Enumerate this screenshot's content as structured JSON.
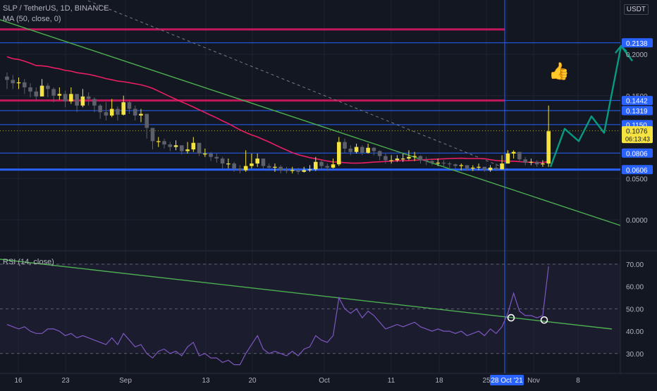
{
  "header": {
    "symbol_line": "SLP / TetherUS, 1D, BINANCE",
    "ma_line": "MA (50, close, 0)",
    "currency": "USDT"
  },
  "rsi_legend": "RSI (14, close)",
  "annotation_icon": "thumbs-up-icon",
  "colors": {
    "background": "#131722",
    "candle_up": "#f5e342",
    "candle_down": "#5d606b",
    "ma": "#e91e63",
    "trendline": "#4caf50",
    "resistance": "#c2185b",
    "hline": "#2962ff",
    "rsi": "#7e57c2",
    "projection": "#089981"
  },
  "chart_data": [
    {
      "type": "candlestick",
      "title": "SLP / TetherUS, 1D, BINANCE",
      "indicator": "MA (50, close, 0)",
      "x_tick_labels": [
        "16",
        "23",
        "Sep",
        "13",
        "20",
        "Oct",
        "11",
        "18",
        "25",
        "28 Oct '21",
        "Nov",
        "8"
      ],
      "y_tick_labels": [
        "0.2000",
        "0.1500",
        "0.0500",
        "0.0000"
      ],
      "price_labels": [
        {
          "value": 0.2138,
          "label": "0.2138",
          "kind": "horizontal-line"
        },
        {
          "value": 0.1442,
          "label": "0.1442",
          "kind": "horizontal-line"
        },
        {
          "value": 0.1319,
          "label": "0.1319",
          "kind": "horizontal-line"
        },
        {
          "value": 0.115,
          "label": "0.1150",
          "kind": "horizontal-line"
        },
        {
          "value": 0.1076,
          "label": "0.1076",
          "sublabel": "06:13:43",
          "kind": "last-price"
        },
        {
          "value": 0.0806,
          "label": "0.0806",
          "kind": "horizontal-line"
        },
        {
          "value": 0.0606,
          "label": "0.0606",
          "kind": "horizontal-line"
        }
      ],
      "resistance_levels": [
        0.23,
        0.1442
      ],
      "closes": [
        0.169,
        0.165,
        0.166,
        0.16,
        0.155,
        0.149,
        0.162,
        0.158,
        0.15,
        0.152,
        0.143,
        0.152,
        0.138,
        0.149,
        0.146,
        0.138,
        0.13,
        0.126,
        0.134,
        0.127,
        0.142,
        0.134,
        0.126,
        0.128,
        0.111,
        0.095,
        0.095,
        0.091,
        0.088,
        0.09,
        0.083,
        0.085,
        0.093,
        0.08,
        0.08,
        0.076,
        0.074,
        0.068,
        0.068,
        0.062,
        0.06,
        0.065,
        0.068,
        0.074,
        0.065,
        0.063,
        0.064,
        0.06,
        0.059,
        0.06,
        0.058,
        0.06,
        0.061,
        0.07,
        0.065,
        0.063,
        0.067,
        0.094,
        0.086,
        0.082,
        0.088,
        0.081,
        0.087,
        0.083,
        0.077,
        0.072,
        0.072,
        0.074,
        0.074,
        0.076,
        0.077,
        0.072,
        0.071,
        0.069,
        0.069,
        0.068,
        0.067,
        0.065,
        0.066,
        0.062,
        0.063,
        0.064,
        0.06,
        0.063,
        0.061,
        0.068,
        0.08,
        0.082,
        0.073,
        0.069,
        0.07,
        0.067,
        0.068,
        0.107
      ],
      "highs": [
        0.178,
        0.175,
        0.172,
        0.17,
        0.165,
        0.16,
        0.17,
        0.165,
        0.16,
        0.16,
        0.156,
        0.16,
        0.15,
        0.158,
        0.154,
        0.148,
        0.14,
        0.142,
        0.146,
        0.137,
        0.15,
        0.144,
        0.138,
        0.134,
        0.122,
        0.1,
        0.1,
        0.098,
        0.094,
        0.096,
        0.09,
        0.094,
        0.1,
        0.09,
        0.086,
        0.082,
        0.08,
        0.076,
        0.074,
        0.07,
        0.066,
        0.084,
        0.08,
        0.08,
        0.072,
        0.068,
        0.068,
        0.066,
        0.064,
        0.064,
        0.063,
        0.064,
        0.066,
        0.076,
        0.072,
        0.068,
        0.074,
        0.1,
        0.098,
        0.09,
        0.092,
        0.09,
        0.092,
        0.088,
        0.084,
        0.08,
        0.078,
        0.078,
        0.08,
        0.084,
        0.082,
        0.078,
        0.076,
        0.074,
        0.074,
        0.072,
        0.07,
        0.068,
        0.068,
        0.066,
        0.066,
        0.068,
        0.064,
        0.066,
        0.068,
        0.078,
        0.084,
        0.084,
        0.082,
        0.076,
        0.074,
        0.072,
        0.072,
        0.138
      ],
      "lows": [
        0.158,
        0.158,
        0.158,
        0.152,
        0.148,
        0.144,
        0.15,
        0.148,
        0.142,
        0.145,
        0.136,
        0.14,
        0.13,
        0.136,
        0.138,
        0.13,
        0.122,
        0.12,
        0.124,
        0.12,
        0.126,
        0.128,
        0.12,
        0.118,
        0.098,
        0.085,
        0.088,
        0.086,
        0.083,
        0.084,
        0.079,
        0.08,
        0.082,
        0.077,
        0.076,
        0.071,
        0.069,
        0.062,
        0.062,
        0.058,
        0.056,
        0.058,
        0.062,
        0.064,
        0.06,
        0.059,
        0.058,
        0.056,
        0.056,
        0.056,
        0.055,
        0.057,
        0.058,
        0.059,
        0.06,
        0.059,
        0.062,
        0.065,
        0.08,
        0.078,
        0.08,
        0.078,
        0.08,
        0.078,
        0.072,
        0.068,
        0.068,
        0.07,
        0.07,
        0.072,
        0.071,
        0.068,
        0.066,
        0.066,
        0.065,
        0.064,
        0.063,
        0.062,
        0.06,
        0.059,
        0.059,
        0.06,
        0.058,
        0.058,
        0.059,
        0.061,
        0.068,
        0.074,
        0.07,
        0.066,
        0.066,
        0.064,
        0.064,
        0.064
      ],
      "projection": [
        0.064,
        0.11,
        0.095,
        0.125,
        0.105,
        0.21,
        0.192
      ]
    },
    {
      "type": "line",
      "title": "RSI (14, close)",
      "y_tick_labels": [
        "70.00",
        "60.00",
        "50.00",
        "40.00",
        "30.00"
      ],
      "bands": [
        70,
        50,
        30
      ],
      "values": [
        43,
        42,
        41,
        42,
        40,
        39,
        39,
        41,
        41,
        40,
        38,
        39,
        37,
        38,
        37,
        36,
        35,
        34,
        37,
        34,
        39,
        36,
        33,
        34,
        30,
        28,
        31,
        32,
        30,
        31,
        29,
        33,
        35,
        29,
        30,
        28,
        28,
        26,
        27,
        25,
        25,
        30,
        34,
        38,
        32,
        30,
        31,
        30,
        29,
        31,
        29,
        32,
        33,
        38,
        36,
        35,
        38,
        55,
        50,
        48,
        50,
        46,
        49,
        47,
        44,
        41,
        42,
        43,
        42,
        43,
        44,
        42,
        41,
        40,
        41,
        40,
        40,
        39,
        40,
        38,
        39,
        40,
        38,
        41,
        39,
        42,
        48,
        57,
        49,
        47,
        47,
        46,
        47,
        69
      ],
      "circled_points": [
        46,
        45
      ]
    }
  ]
}
